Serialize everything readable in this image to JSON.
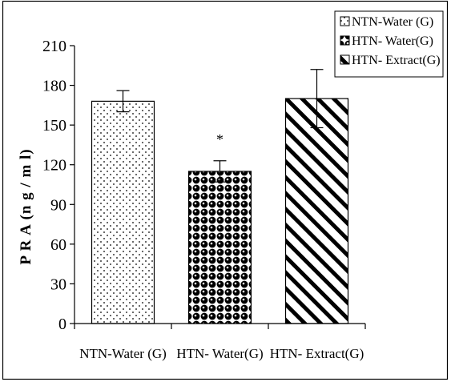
{
  "chart_data": {
    "type": "bar",
    "title": "",
    "xlabel": "",
    "ylabel": "P R A (n g / m l)",
    "categories": [
      "NTN-Water (G)",
      "HTN- Water(G)",
      "HTN-  Extract(G)"
    ],
    "values": [
      168,
      115,
      170
    ],
    "error": [
      8,
      8,
      22
    ],
    "significance": [
      "",
      "*",
      ""
    ],
    "ylim": [
      0,
      210
    ],
    "yticks": [
      0,
      30,
      60,
      90,
      120,
      150,
      180,
      210
    ],
    "grid": false,
    "legend": {
      "position": "top-right",
      "entries": [
        "NTN-Water (G)",
        "HTN- Water(G)",
        "HTN-  Extract(G)"
      ]
    },
    "patterns": [
      "dots",
      "beads",
      "diagonal-stripes"
    ],
    "colors": {
      "axis": "#000000",
      "fill": "#ffffff",
      "ink": "#000000"
    }
  }
}
